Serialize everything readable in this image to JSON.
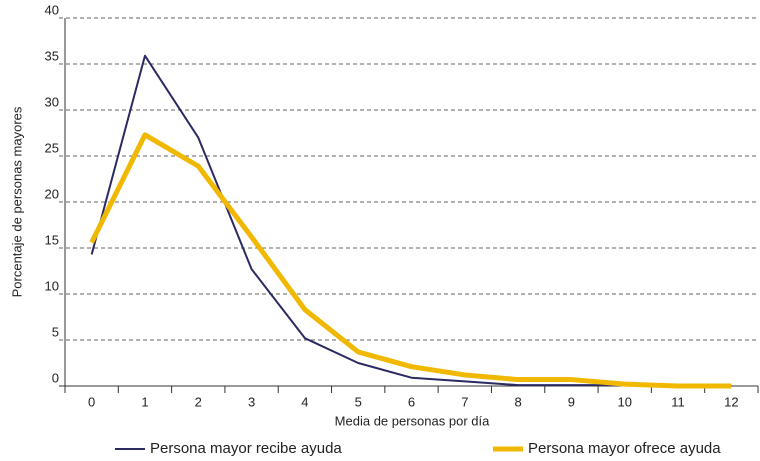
{
  "chart_data": {
    "type": "line",
    "xlabel": "Media de personas por día",
    "ylabel": "Porcentaje de personas mayores",
    "categories": [
      "0",
      "1",
      "2",
      "3",
      "4",
      "5",
      "6",
      "7",
      "8",
      "9",
      "10",
      "11",
      "12"
    ],
    "series": [
      {
        "name": "Persona mayor recibe ayuda",
        "color": "#2b2a63",
        "width": 2,
        "values": [
          14.3,
          35.9,
          27,
          12.7,
          5.2,
          2.5,
          0.9,
          0.5,
          0.1,
          0.1,
          0.1,
          0,
          0
        ]
      },
      {
        "name": "Persona mayor ofrece ayuda",
        "color": "#f0b800",
        "width": 5,
        "values": [
          15.6,
          27.3,
          23.9,
          16.2,
          8.3,
          3.7,
          2.1,
          1.2,
          0.7,
          0.7,
          0.2,
          0,
          0
        ]
      }
    ],
    "ylim": [
      0,
      40
    ],
    "yticks": [
      0,
      5,
      10,
      15,
      20,
      25,
      30,
      35,
      40
    ],
    "grid": true,
    "legend": "bottom"
  }
}
